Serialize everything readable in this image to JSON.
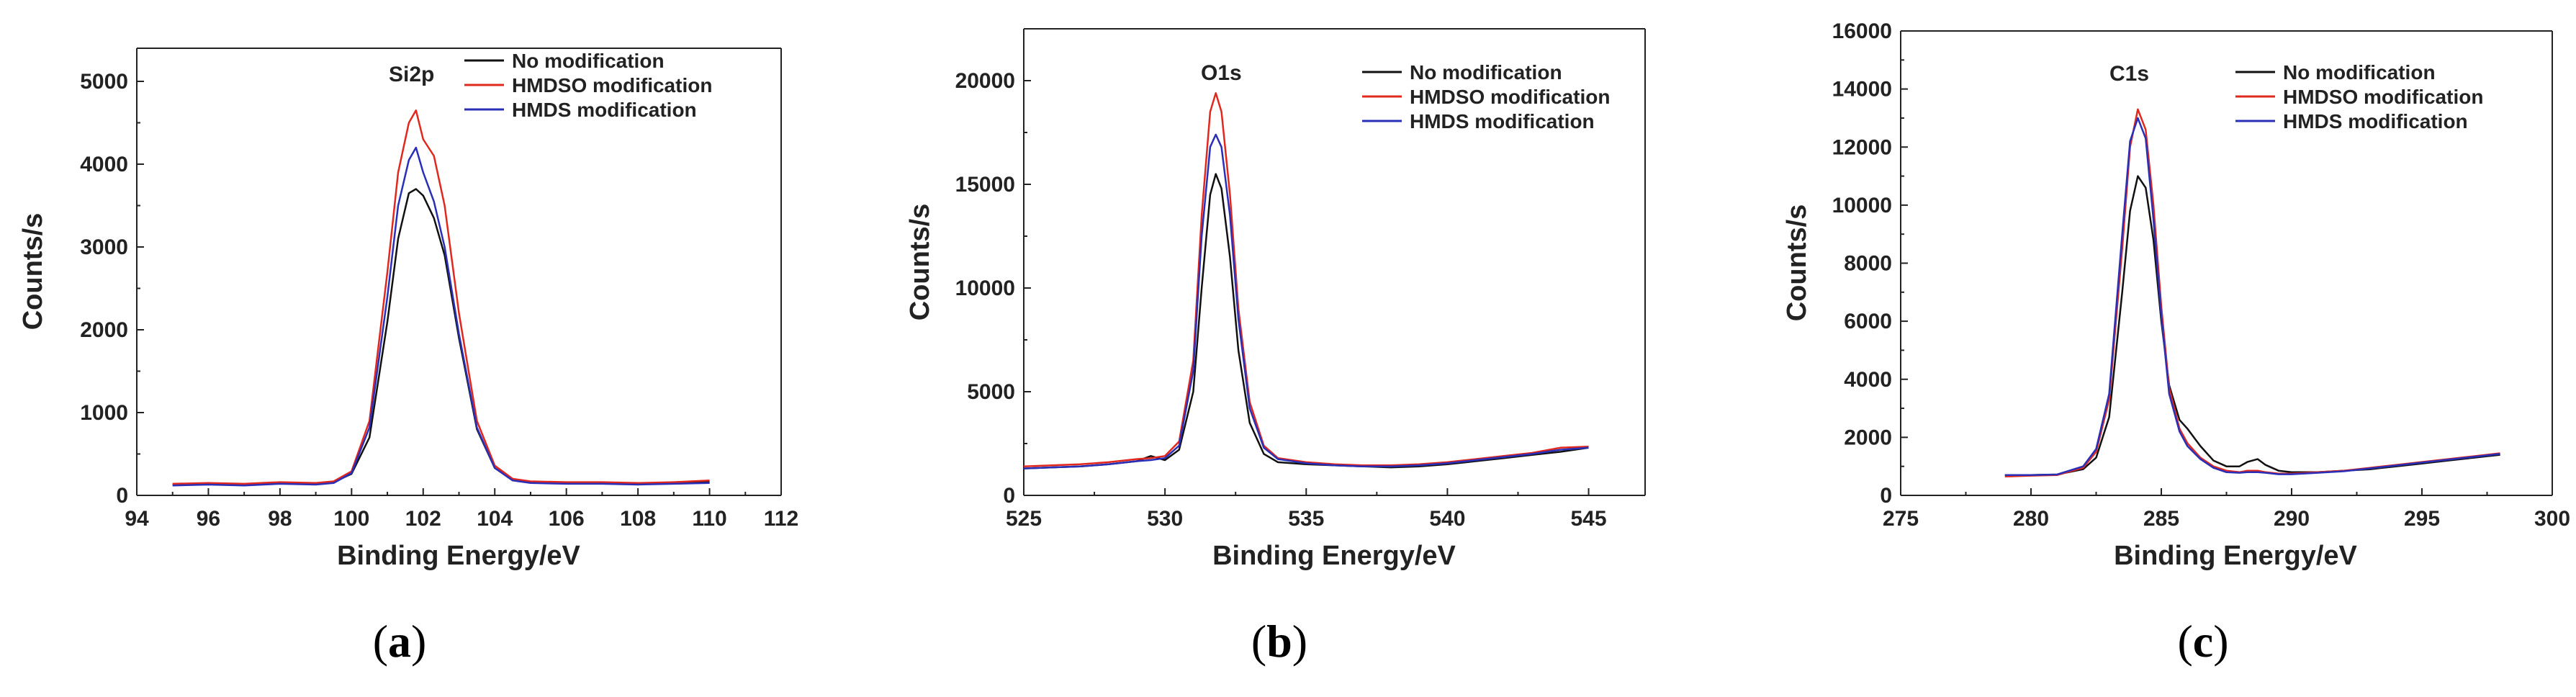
{
  "colors": {
    "no_mod": "#111111",
    "hmdso": "#e0281e",
    "hmds": "#2a2fb8"
  },
  "chart_data": [
    {
      "type": "line",
      "panel_label": "a",
      "peak_label": "Si2p",
      "xlabel": "Binding Energy/eV",
      "ylabel": "Counts/s",
      "xlim": [
        94,
        112
      ],
      "ylim": [
        0,
        5400
      ],
      "xticks": [
        94,
        96,
        98,
        100,
        102,
        104,
        106,
        108,
        110,
        112
      ],
      "yticks": [
        0,
        1000,
        2000,
        3000,
        4000,
        5000
      ],
      "legend": [
        "No modification",
        "HMDSO modification",
        "HMDS modification"
      ],
      "series": [
        {
          "name": "No modification",
          "color_key": "no_mod",
          "x": [
            95,
            96,
            97,
            98,
            99,
            99.5,
            100,
            100.5,
            101,
            101.3,
            101.6,
            101.8,
            102,
            102.3,
            102.6,
            103,
            103.5,
            104,
            104.5,
            105,
            106,
            107,
            108,
            109,
            110
          ],
          "y": [
            130,
            140,
            130,
            150,
            140,
            160,
            260,
            700,
            2100,
            3100,
            3650,
            3700,
            3620,
            3350,
            2900,
            1900,
            800,
            330,
            190,
            160,
            150,
            150,
            140,
            150,
            160
          ]
        },
        {
          "name": "HMDSO modification",
          "color_key": "hmdso",
          "x": [
            95,
            96,
            97,
            98,
            99,
            99.5,
            100,
            100.5,
            101,
            101.3,
            101.6,
            101.8,
            102,
            102.3,
            102.6,
            103,
            103.5,
            104,
            104.5,
            105,
            106,
            107,
            108,
            109,
            110
          ],
          "y": [
            140,
            150,
            140,
            160,
            150,
            170,
            290,
            900,
            2700,
            3900,
            4500,
            4650,
            4300,
            4100,
            3500,
            2200,
            900,
            360,
            200,
            170,
            160,
            160,
            150,
            160,
            180
          ]
        },
        {
          "name": "HMDS modification",
          "color_key": "hmds",
          "x": [
            95,
            96,
            97,
            98,
            99,
            99.5,
            100,
            100.5,
            101,
            101.3,
            101.6,
            101.8,
            102,
            102.3,
            102.6,
            103,
            103.5,
            104,
            104.5,
            105,
            106,
            107,
            108,
            109,
            110
          ],
          "y": [
            120,
            130,
            120,
            140,
            130,
            150,
            270,
            820,
            2400,
            3500,
            4050,
            4200,
            3900,
            3550,
            3000,
            1950,
            820,
            330,
            180,
            150,
            140,
            140,
            130,
            140,
            150
          ]
        }
      ]
    },
    {
      "type": "line",
      "panel_label": "b",
      "peak_label": "O1s",
      "xlabel": "Binding Energy/eV",
      "ylabel": "Counts/s",
      "xlim": [
        525,
        547
      ],
      "ylim": [
        0,
        22500
      ],
      "xticks": [
        525,
        530,
        535,
        540,
        545
      ],
      "yticks": [
        0,
        5000,
        10000,
        15000,
        20000
      ],
      "legend": [
        "No modification",
        "HMDSO modification",
        "HMDS modification"
      ],
      "series": [
        {
          "name": "No modification",
          "color_key": "no_mod",
          "x": [
            525,
            526,
            527,
            528,
            529,
            529.5,
            530,
            530.5,
            531,
            531.3,
            531.6,
            531.8,
            532,
            532.3,
            532.6,
            533,
            533.5,
            534,
            535,
            536,
            537,
            538,
            539,
            540,
            541,
            542,
            543,
            544,
            545
          ],
          "y": [
            1300,
            1350,
            1400,
            1500,
            1650,
            1900,
            1700,
            2200,
            5000,
            10000,
            14500,
            15500,
            14800,
            11500,
            7000,
            3500,
            2000,
            1600,
            1500,
            1450,
            1400,
            1350,
            1400,
            1500,
            1650,
            1800,
            1950,
            2100,
            2300
          ]
        },
        {
          "name": "HMDSO modification",
          "color_key": "hmdso",
          "x": [
            525,
            526,
            527,
            528,
            529,
            529.5,
            530,
            530.5,
            531,
            531.3,
            531.6,
            531.8,
            532,
            532.3,
            532.6,
            533,
            533.5,
            534,
            535,
            536,
            537,
            538,
            539,
            540,
            541,
            542,
            543,
            544,
            545
          ],
          "y": [
            1400,
            1450,
            1500,
            1600,
            1750,
            1800,
            1900,
            2600,
            6500,
            13500,
            18500,
            19400,
            18500,
            14500,
            9000,
            4500,
            2400,
            1800,
            1600,
            1500,
            1450,
            1450,
            1500,
            1600,
            1750,
            1900,
            2050,
            2300,
            2350
          ]
        },
        {
          "name": "HMDS modification",
          "color_key": "hmds",
          "x": [
            525,
            526,
            527,
            528,
            529,
            529.5,
            530,
            530.5,
            531,
            531.3,
            531.6,
            531.8,
            532,
            532.3,
            532.6,
            533,
            533.5,
            534,
            535,
            536,
            537,
            538,
            539,
            540,
            541,
            542,
            543,
            544,
            545
          ],
          "y": [
            1300,
            1350,
            1400,
            1500,
            1650,
            1700,
            1800,
            2400,
            6000,
            12500,
            16800,
            17400,
            16800,
            13500,
            8500,
            4200,
            2300,
            1750,
            1550,
            1450,
            1400,
            1400,
            1450,
            1550,
            1700,
            1850,
            2000,
            2200,
            2300
          ]
        }
      ]
    },
    {
      "type": "line",
      "panel_label": "c",
      "peak_label": "C1s",
      "xlabel": "Binding Energy/eV",
      "ylabel": "Counts/s",
      "xlim": [
        275,
        300
      ],
      "ylim": [
        0,
        16000
      ],
      "xticks": [
        275,
        280,
        285,
        290,
        295,
        300
      ],
      "yticks": [
        0,
        2000,
        4000,
        6000,
        8000,
        10000,
        12000,
        14000,
        16000
      ],
      "legend": [
        "No modification",
        "HMDSO modification",
        "HMDS modification"
      ],
      "series": [
        {
          "name": "No modification",
          "color_key": "no_mod",
          "x": [
            279,
            280,
            281,
            282,
            282.5,
            283,
            283.5,
            283.8,
            284.1,
            284.4,
            284.7,
            285,
            285.3,
            285.7,
            286,
            286.5,
            287,
            287.5,
            288,
            288.3,
            288.7,
            289,
            289.5,
            290,
            291,
            292,
            293,
            294,
            295,
            296,
            297,
            298
          ],
          "y": [
            700,
            700,
            720,
            900,
            1300,
            2700,
            7000,
            9800,
            11000,
            10600,
            8800,
            6000,
            3800,
            2600,
            2300,
            1700,
            1200,
            1000,
            1000,
            1150,
            1250,
            1050,
            850,
            800,
            800,
            850,
            900,
            1000,
            1100,
            1200,
            1300,
            1400
          ]
        },
        {
          "name": "HMDSO modification",
          "color_key": "hmdso",
          "x": [
            279,
            280,
            281,
            282,
            282.5,
            283,
            283.5,
            283.8,
            284.1,
            284.4,
            284.7,
            285,
            285.3,
            285.7,
            286,
            286.5,
            287,
            287.5,
            288,
            288.3,
            288.7,
            289,
            289.5,
            290,
            291,
            292,
            293,
            294,
            295,
            296,
            297,
            298
          ],
          "y": [
            650,
            680,
            700,
            950,
            1500,
            3300,
            8500,
            12000,
            13300,
            12600,
            10000,
            6500,
            3700,
            2300,
            1800,
            1300,
            1000,
            850,
            800,
            850,
            850,
            800,
            750,
            750,
            800,
            850,
            950,
            1050,
            1150,
            1250,
            1350,
            1450
          ]
        },
        {
          "name": "HMDS modification",
          "color_key": "hmds",
          "x": [
            279,
            280,
            281,
            282,
            282.5,
            283,
            283.5,
            283.8,
            284.1,
            284.4,
            284.7,
            285,
            285.3,
            285.7,
            286,
            286.5,
            287,
            287.5,
            288,
            288.3,
            288.7,
            289,
            289.5,
            290,
            291,
            292,
            293,
            294,
            295,
            296,
            297,
            298
          ],
          "y": [
            700,
            700,
            720,
            1000,
            1600,
            3500,
            9000,
            12200,
            13000,
            12300,
            9500,
            6200,
            3500,
            2200,
            1700,
            1250,
            950,
            800,
            780,
            800,
            800,
            780,
            730,
            730,
            780,
            830,
            930,
            1030,
            1130,
            1230,
            1330,
            1430
          ]
        }
      ]
    }
  ]
}
